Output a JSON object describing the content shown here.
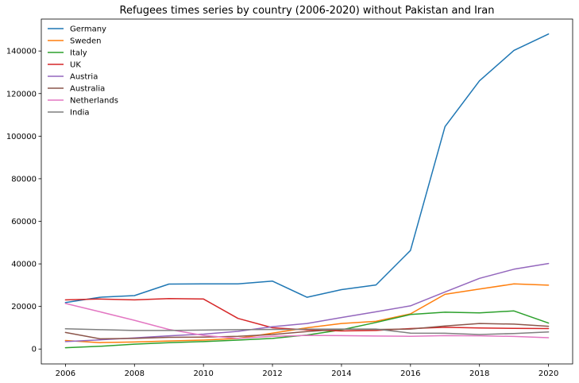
{
  "chart_data": {
    "type": "line",
    "title": "Refugees times series by country (2006-2020) without Pakistan and Iran",
    "xlabel": "",
    "ylabel": "",
    "x": [
      2006,
      2007,
      2008,
      2009,
      2010,
      2011,
      2012,
      2013,
      2014,
      2015,
      2016,
      2017,
      2018,
      2019,
      2020
    ],
    "xlim": [
      2005.3,
      2020.7
    ],
    "ylim": [
      -7000,
      155000
    ],
    "x_ticks": [
      "2006",
      "2008",
      "2010",
      "2012",
      "2014",
      "2016",
      "2018",
      "2020"
    ],
    "y_ticks": [
      "0",
      "20000",
      "40000",
      "60000",
      "80000",
      "100000",
      "120000",
      "140000"
    ],
    "grid": false,
    "legend_position": "top-left",
    "series": [
      {
        "name": "Germany",
        "color": "#1f77b4",
        "values": [
          21800,
          24300,
          25100,
          30500,
          30600,
          30600,
          31900,
          24300,
          27900,
          30100,
          46300,
          104500,
          126000,
          140300,
          148000
        ]
      },
      {
        "name": "Sweden",
        "color": "#ff7f0e",
        "values": [
          4000,
          3000,
          3300,
          3800,
          4200,
          5000,
          7500,
          10000,
          12000,
          13000,
          16500,
          25700,
          28200,
          30600,
          30000
        ]
      },
      {
        "name": "Italy",
        "color": "#2ca02c",
        "values": [
          600,
          1300,
          2300,
          3000,
          3500,
          4200,
          5000,
          6600,
          9000,
          12500,
          16200,
          17300,
          17000,
          17900,
          12200
        ]
      },
      {
        "name": "UK",
        "color": "#d62728",
        "values": [
          23100,
          23500,
          23100,
          23700,
          23500,
          14400,
          10000,
          9000,
          8500,
          8700,
          9600,
          10200,
          9900,
          9700,
          9600
        ]
      },
      {
        "name": "Austria",
        "color": "#9467bd",
        "values": [
          3500,
          4300,
          5200,
          6200,
          7000,
          8300,
          10500,
          12000,
          14800,
          17500,
          20300,
          26800,
          33200,
          37500,
          40200
        ]
      },
      {
        "name": "Australia",
        "color": "#8c564b",
        "values": [
          7800,
          4800,
          5000,
          5500,
          5600,
          6000,
          6800,
          8200,
          9300,
          9200,
          9400,
          10800,
          12000,
          11700,
          10700
        ]
      },
      {
        "name": "Netherlands",
        "color": "#e377c2",
        "values": [
          21400,
          17500,
          13500,
          9200,
          6400,
          5000,
          6000,
          6400,
          6300,
          6100,
          6000,
          6300,
          6200,
          5900,
          5300
        ]
      },
      {
        "name": "India",
        "color": "#7f7f7f",
        "values": [
          9500,
          9100,
          8700,
          8700,
          8900,
          9100,
          9200,
          9300,
          9400,
          9400,
          7500,
          7400,
          6800,
          7300,
          8000
        ]
      }
    ]
  }
}
